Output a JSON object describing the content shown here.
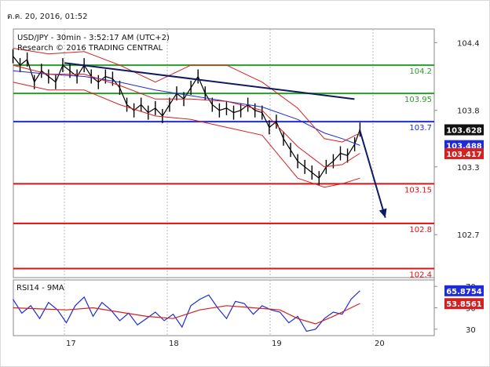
{
  "header": {
    "timestamp": "ต.ค. 20, 2016, 01:52"
  },
  "chart_data": {
    "type": "line",
    "title": "USD/JPY - 30min - 3:52:17 AM (UTC+2)",
    "subtitle": "Research © 2016 TRADING CENTRAL",
    "x_ticks": [
      "17",
      "18",
      "19",
      "20"
    ],
    "price_axis": {
      "ticks": [
        104.4,
        103.8,
        103.3,
        102.7
      ],
      "ylim": [
        102.32,
        104.52
      ]
    },
    "levels": [
      {
        "value": 104.2,
        "label": "104.2",
        "color": "#2e9a2e"
      },
      {
        "value": 103.95,
        "label": "103.95",
        "color": "#2e9a2e"
      },
      {
        "value": 103.7,
        "label": "103.7",
        "color": "#1f2bd6"
      },
      {
        "value": 103.15,
        "label": "103.15",
        "color": "#e01010"
      },
      {
        "value": 102.8,
        "label": "102.8",
        "color": "#e01010"
      },
      {
        "value": 102.4,
        "label": "102.4",
        "color": "#e01010"
      }
    ],
    "price_tags": [
      {
        "value": 103.628,
        "label": "103.628",
        "bg": "#111111"
      },
      {
        "value": 103.488,
        "label": "103.488",
        "bg": "#1f2bd6"
      },
      {
        "value": 103.417,
        "label": "103.417",
        "bg": "#d42020"
      }
    ],
    "trendline": {
      "from": {
        "x": 1.0,
        "y": 104.22
      },
      "to": {
        "x": 3.82,
        "y": 103.9
      },
      "color": "#101a60"
    },
    "forecast_arrow": {
      "from": {
        "x": 3.87,
        "y": 103.63
      },
      "to": {
        "x": 4.12,
        "y": 102.85
      },
      "color": "#0a1a66"
    },
    "series": [
      {
        "name": "close",
        "color": "#000000",
        "x": [
          0,
          0.08,
          0.16,
          0.24,
          0.32,
          0.4,
          0.48,
          0.56,
          0.64,
          0.72,
          0.8,
          0.88,
          0.96,
          1.04,
          1.12,
          1.2,
          1.28,
          1.36,
          1.44,
          1.52,
          1.6,
          1.68,
          1.76,
          1.84,
          1.92,
          2.0,
          2.08,
          2.16,
          2.24,
          2.32,
          2.4,
          2.48,
          2.56,
          2.64,
          2.72,
          2.8,
          2.88,
          2.96,
          3.04,
          3.12,
          3.2,
          3.28,
          3.36,
          3.44,
          3.52,
          3.6,
          3.68,
          3.76,
          3.84,
          3.9
        ],
        "y": [
          104.28,
          104.2,
          104.25,
          104.05,
          104.15,
          104.1,
          104.05,
          104.2,
          104.15,
          104.1,
          104.2,
          104.1,
          104.05,
          104.1,
          104.08,
          104.0,
          103.85,
          103.8,
          103.85,
          103.78,
          103.82,
          103.75,
          103.85,
          103.95,
          103.9,
          104.0,
          104.1,
          103.95,
          103.85,
          103.8,
          103.82,
          103.78,
          103.8,
          103.85,
          103.8,
          103.78,
          103.65,
          103.7,
          103.55,
          103.45,
          103.35,
          103.3,
          103.25,
          103.2,
          103.3,
          103.35,
          103.42,
          103.4,
          103.5,
          103.63
        ]
      },
      {
        "name": "ma-blue",
        "color": "#1f2bd6",
        "x": [
          0,
          0.4,
          0.8,
          1.2,
          1.6,
          2.0,
          2.4,
          2.8,
          3.2,
          3.5,
          3.7,
          3.9
        ],
        "y": [
          104.15,
          104.12,
          104.1,
          104.05,
          103.98,
          103.93,
          103.88,
          103.83,
          103.72,
          103.6,
          103.55,
          103.49
        ]
      },
      {
        "name": "ma-red",
        "color": "#d42020",
        "x": [
          0,
          0.4,
          0.8,
          1.2,
          1.6,
          2.0,
          2.4,
          2.8,
          3.2,
          3.5,
          3.7,
          3.9
        ],
        "y": [
          104.2,
          104.12,
          104.12,
          104.02,
          103.9,
          103.9,
          103.88,
          103.8,
          103.48,
          103.3,
          103.32,
          103.42
        ]
      },
      {
        "name": "band-upper",
        "color": "#d42020",
        "x": [
          0,
          0.4,
          0.8,
          1.2,
          1.6,
          2.0,
          2.4,
          2.8,
          3.2,
          3.5,
          3.7,
          3.9
        ],
        "y": [
          104.35,
          104.3,
          104.32,
          104.2,
          104.05,
          104.2,
          104.2,
          104.05,
          103.82,
          103.55,
          103.52,
          103.6
        ]
      },
      {
        "name": "band-lower",
        "color": "#d42020",
        "x": [
          0,
          0.4,
          0.8,
          1.2,
          1.6,
          2.0,
          2.4,
          2.8,
          3.2,
          3.5,
          3.7,
          3.9
        ],
        "y": [
          104.05,
          103.98,
          103.98,
          103.85,
          103.75,
          103.72,
          103.65,
          103.58,
          103.2,
          103.12,
          103.15,
          103.2
        ]
      }
    ],
    "rsi": {
      "label": "RSI14 - 9MA",
      "ticks": [
        70,
        50,
        30
      ],
      "ylim": [
        24,
        76
      ],
      "tags": [
        {
          "value": 65.8754,
          "label": "65.8754",
          "bg": "#1f2bd6"
        },
        {
          "value": 53.8561,
          "label": "53.8561",
          "bg": "#d42020"
        }
      ],
      "series": [
        {
          "name": "rsi",
          "color": "#1f2bd6",
          "x": [
            0,
            0.1,
            0.2,
            0.3,
            0.4,
            0.5,
            0.6,
            0.7,
            0.8,
            0.9,
            1.0,
            1.1,
            1.2,
            1.3,
            1.4,
            1.5,
            1.6,
            1.7,
            1.8,
            1.9,
            2.0,
            2.1,
            2.2,
            2.3,
            2.4,
            2.5,
            2.6,
            2.7,
            2.8,
            2.9,
            3.0,
            3.1,
            3.2,
            3.3,
            3.4,
            3.5,
            3.6,
            3.7,
            3.8,
            3.9
          ],
          "y": [
            58,
            45,
            52,
            40,
            55,
            48,
            36,
            52,
            60,
            42,
            55,
            48,
            38,
            45,
            34,
            40,
            46,
            38,
            44,
            32,
            52,
            58,
            62,
            50,
            40,
            56,
            54,
            44,
            52,
            48,
            46,
            36,
            42,
            28,
            30,
            40,
            46,
            44,
            58,
            66
          ]
        },
        {
          "name": "rsi-ma",
          "color": "#d42020",
          "x": [
            0,
            0.3,
            0.6,
            0.9,
            1.2,
            1.5,
            1.8,
            2.1,
            2.4,
            2.7,
            3.0,
            3.2,
            3.4,
            3.6,
            3.8,
            3.9
          ],
          "y": [
            50,
            49,
            48,
            50,
            46,
            42,
            40,
            48,
            52,
            50,
            48,
            40,
            35,
            42,
            50,
            54
          ]
        }
      ]
    }
  }
}
